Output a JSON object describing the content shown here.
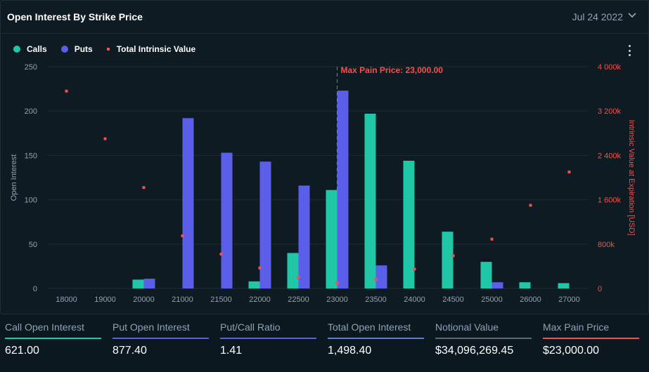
{
  "header": {
    "title": "Open Interest By Strike Price",
    "date": "Jul 24 2022"
  },
  "legend": {
    "calls": "Calls",
    "puts": "Puts",
    "intrinsic": "Total Intrinsic Value"
  },
  "colors": {
    "calls": "#1fc7a7",
    "puts": "#5b5ee8",
    "intrinsic": "#f0524e"
  },
  "chart_data": {
    "type": "bar",
    "categories": [
      "18000",
      "19000",
      "20000",
      "21000",
      "21500",
      "22000",
      "22500",
      "23000",
      "23500",
      "24000",
      "24500",
      "25000",
      "26000",
      "27000"
    ],
    "series": [
      {
        "name": "Calls",
        "values": [
          0,
          0,
          10,
          0,
          0,
          8,
          40,
          111,
          197,
          144,
          64,
          30,
          7,
          6
        ]
      },
      {
        "name": "Puts",
        "values": [
          0,
          0,
          11,
          192,
          153,
          143,
          116,
          223,
          26,
          0,
          0,
          7,
          0,
          0
        ]
      },
      {
        "name": "Total Intrinsic Value",
        "type": "scatter",
        "axis": "right",
        "values": [
          3560000,
          2700000,
          1820000,
          950000,
          620000,
          370000,
          200000,
          100000,
          160000,
          350000,
          590000,
          890000,
          1500000,
          2100000
        ]
      }
    ],
    "ylabel": "Open Interest",
    "ylim": [
      0,
      250
    ],
    "yticks": [
      "0",
      "50",
      "100",
      "150",
      "200",
      "250"
    ],
    "y2label": "Intrinsic Value at Expiration [USD]",
    "y2lim": [
      0,
      4000000
    ],
    "y2ticks": [
      "0",
      "800k",
      "1 600k",
      "2 400k",
      "3 200k",
      "4 000k"
    ],
    "annotation": {
      "label": "Max Pain Price: 23,000.00",
      "category": "23000"
    },
    "grid": true,
    "legend_position": "top-left"
  },
  "stats": [
    {
      "label": "Call Open Interest",
      "value": "621.00",
      "color": "#1fc7a7"
    },
    {
      "label": "Put Open Interest",
      "value": "877.40",
      "color": "#5b5ee8"
    },
    {
      "label": "Put/Call Ratio",
      "value": "1.41",
      "color": "#5b5ee8"
    },
    {
      "label": "Total Open Interest",
      "value": "1,498.40",
      "color": "#5b7fd6"
    },
    {
      "label": "Notional Value",
      "value": "$34,096,269.45",
      "color": "#5d6770"
    },
    {
      "label": "Max Pain Price",
      "value": "$23,000.00",
      "color": "#f0524e"
    }
  ]
}
